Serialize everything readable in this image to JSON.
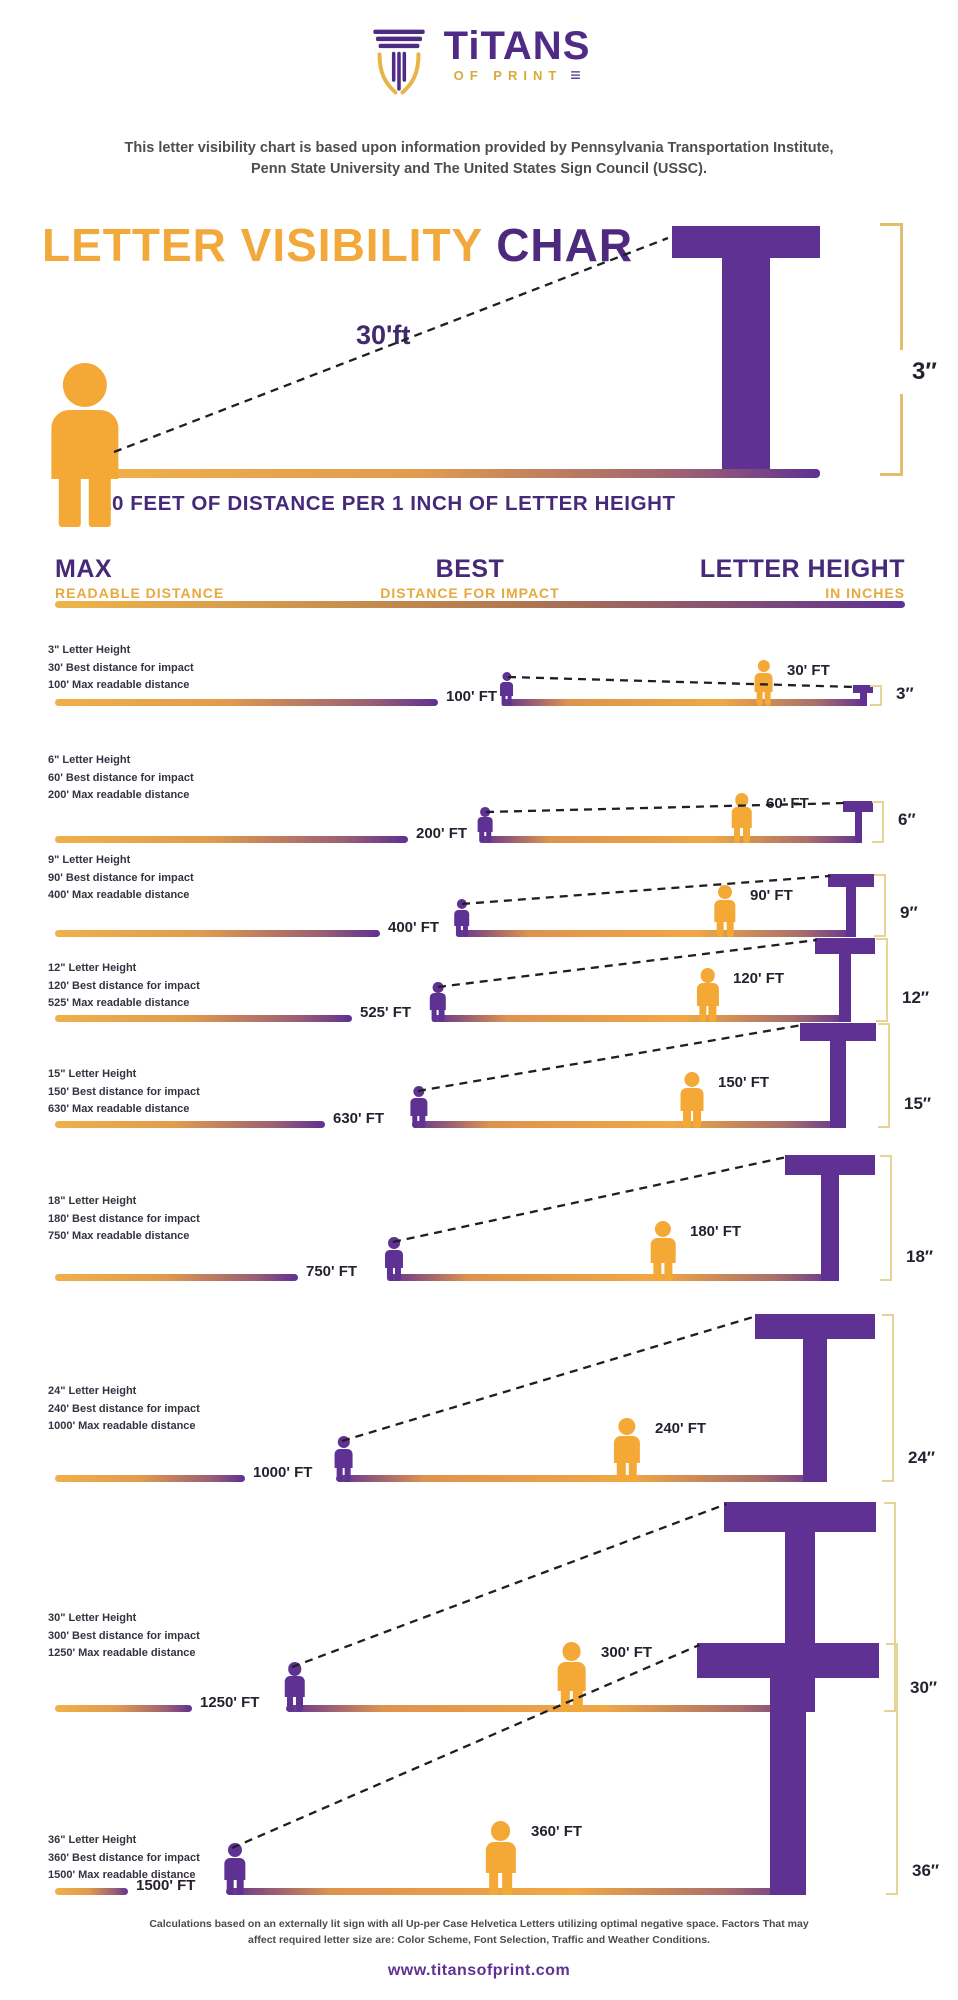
{
  "logo": {
    "brand": "TiTANS",
    "sub": "OF PRINT",
    "lines_glyph": "≡"
  },
  "intro": {
    "line1": "This letter visibility chart is based upon information provided by Pennsylvania Transportation Institute,",
    "line2": "Penn State University and The United States Sign Council (USSC)."
  },
  "hero": {
    "title_orange": "LETTER VISIBILITY ",
    "title_purple": "CHAR",
    "big_letter": "T",
    "sight_label": "30'ft",
    "height_label": "3″",
    "caption": "10 FEET OF DISTANCE PER 1 INCH OF LETTER HEIGHT"
  },
  "columns": {
    "max_title": "MAX",
    "max_sub": "READABLE DISTANCE",
    "best_title": "BEST",
    "best_sub": "DISTANCE FOR IMPACT",
    "height_title": "LETTER HEIGHT",
    "height_sub": "IN INCHES"
  },
  "rows": [
    {
      "height_text": "3\" Letter Height",
      "best_text": "30' Best distance for impact",
      "max_text": "100' Max readable distance",
      "max_label": "100' FT",
      "best_label": "30' FT",
      "inch_label": "3″"
    },
    {
      "height_text": "6\" Letter Height",
      "best_text": "60' Best distance for impact",
      "max_text": "200' Max readable distance",
      "max_label": "200' FT",
      "best_label": "60' FT",
      "inch_label": "6″"
    },
    {
      "height_text": "9\" Letter Height",
      "best_text": "90' Best distance for impact",
      "max_text": "400' Max readable distance",
      "max_label": "400' FT",
      "best_label": "90' FT",
      "inch_label": "9″"
    },
    {
      "height_text": "12\" Letter Height",
      "best_text": "120' Best distance for impact",
      "max_text": "525' Max readable distance",
      "max_label": "525' FT",
      "best_label": "120' FT",
      "inch_label": "12″"
    },
    {
      "height_text": "15\" Letter Height",
      "best_text": "150' Best distance for impact",
      "max_text": "630' Max readable distance",
      "max_label": "630' FT",
      "best_label": "150' FT",
      "inch_label": "15″"
    },
    {
      "height_text": "18\" Letter Height",
      "best_text": "180' Best distance for impact",
      "max_text": "750' Max readable distance",
      "max_label": "750' FT",
      "best_label": "180' FT",
      "inch_label": "18″"
    },
    {
      "height_text": "24\" Letter Height",
      "best_text": "240' Best distance for impact",
      "max_text": "1000' Max readable distance",
      "max_label": "1000' FT",
      "best_label": "240' FT",
      "inch_label": "24″"
    },
    {
      "height_text": "30\" Letter Height",
      "best_text": "300' Best distance for impact",
      "max_text": "1250' Max readable distance",
      "max_label": "1250' FT",
      "best_label": "300' FT",
      "inch_label": "30″"
    },
    {
      "height_text": "36\" Letter Height",
      "best_text": "360' Best distance for impact",
      "max_text": "1500' Max readable distance",
      "max_label": "1500' FT",
      "best_label": "360' FT",
      "inch_label": "36″"
    }
  ],
  "footer": {
    "note1": "Calculations based on an externally lit sign with all Up-per Case Helvetica Letters utilizing  optimal negative space. Factors That may",
    "note2": "affect required letter size are: Color Scheme, Font Selection, Traffic and Weather Conditions.",
    "website": "www.titansofprint.com"
  },
  "colors": {
    "purple": "#5E3192",
    "title_purple": "#4E2A7E",
    "orange": "#F4A836",
    "gold_bracket": "#E2BE6C",
    "pale_bracket": "#E5D493"
  },
  "chart_data": {
    "type": "table",
    "title": "Letter Visibility Chart",
    "rule": "10 feet of distance per 1 inch of letter height",
    "columns": [
      "Letter Height (inches)",
      "Best Distance for Impact (ft)",
      "Max Readable Distance (ft)"
    ],
    "rows": [
      [
        3,
        30,
        100
      ],
      [
        6,
        60,
        200
      ],
      [
        9,
        90,
        400
      ],
      [
        12,
        120,
        525
      ],
      [
        15,
        150,
        630
      ],
      [
        18,
        180,
        750
      ],
      [
        24,
        240,
        1000
      ],
      [
        30,
        300,
        1250
      ],
      [
        36,
        360,
        1500
      ]
    ],
    "source": "Pennsylvania Transportation Institute, Penn State University, United States Sign Council (USSC)"
  }
}
